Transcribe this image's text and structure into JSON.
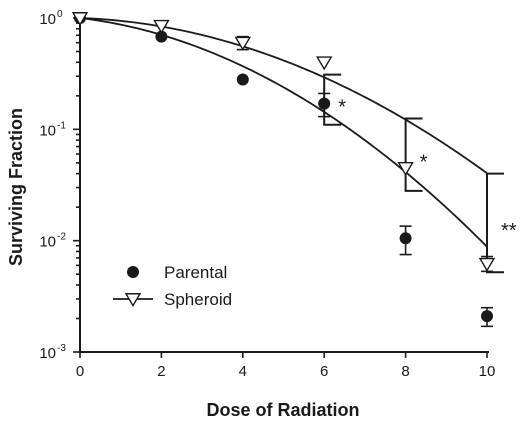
{
  "chart_data": {
    "type": "scatter",
    "xlabel": "Dose of Radiation",
    "ylabel": "Surviving Fraction",
    "xlim": [
      0,
      10
    ],
    "ylim": [
      0.001,
      1
    ],
    "yscale": "log",
    "x_ticks": [
      "0",
      "2",
      "4",
      "6",
      "8",
      "10"
    ],
    "y_ticks": [
      {
        "base": "10",
        "exp": "0",
        "value": 1
      },
      {
        "base": "10",
        "exp": "-1",
        "value": 0.1
      },
      {
        "base": "10",
        "exp": "-2",
        "value": 0.01
      },
      {
        "base": "10",
        "exp": "-3",
        "value": 0.001
      }
    ],
    "legend_position": "lower-left",
    "series": [
      {
        "name": "Parental",
        "marker": "filled-circle",
        "x": [
          0,
          2,
          4,
          6,
          8,
          10
        ],
        "y": [
          1.0,
          0.68,
          0.28,
          0.17,
          0.0105,
          0.0021
        ],
        "err_low": [
          null,
          null,
          null,
          0.13,
          0.0075,
          0.0017
        ],
        "err_high": [
          null,
          null,
          null,
          0.21,
          0.0135,
          0.0025
        ],
        "fit": {
          "alpha": 0.1,
          "beta": 0.0373
        }
      },
      {
        "name": "Spheroid",
        "marker": "open-triangle-down",
        "x": [
          0,
          2,
          4,
          6,
          8,
          10
        ],
        "y": [
          1.0,
          0.85,
          0.6,
          0.4,
          0.045,
          0.0062
        ],
        "err_low": [
          null,
          null,
          0.52,
          null,
          null,
          0.0053
        ],
        "err_high": [
          null,
          null,
          0.68,
          null,
          null,
          0.0072
        ],
        "fit": {
          "alpha": 0.03,
          "beta": 0.0291
        }
      }
    ],
    "significance": [
      {
        "x": 6,
        "y_low": 0.11,
        "y_high": 0.31,
        "label": "*"
      },
      {
        "x": 8,
        "y_low": 0.028,
        "y_high": 0.125,
        "label": "*"
      },
      {
        "x": 10,
        "y_low": 0.0052,
        "y_high": 0.04,
        "label": "**"
      }
    ]
  }
}
